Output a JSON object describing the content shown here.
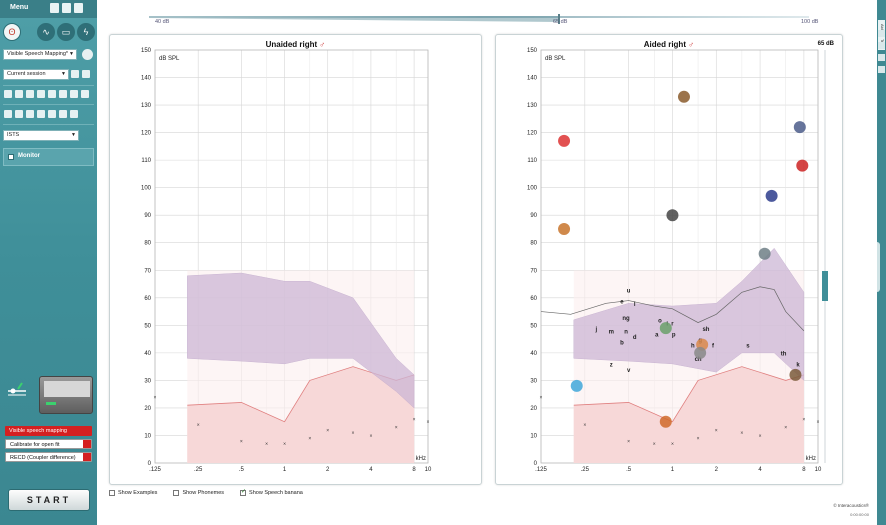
{
  "sidebar": {
    "menu_label": "Menu",
    "program_combo": "Visible Speech Mapping*",
    "session_combo": "Current session",
    "signal_combo": "ISTS",
    "monitor_label": "Monitor",
    "modes": [
      {
        "label": "Visible speech mapping",
        "active": true
      },
      {
        "label": "Calibrate for open fit",
        "active": false
      },
      {
        "label": "RECD (Coupler difference)",
        "active": false
      }
    ],
    "start_label": "START"
  },
  "level_bar": {
    "min_label": "40 dB",
    "mid_label": "65 dB",
    "max_label": "100 dB"
  },
  "right_strip": {
    "tab1": "Aid",
    "tab2": "Test"
  },
  "unaided": {
    "title": "Unaided right",
    "y_axis_label": "dB SPL",
    "x_unit": "kHz",
    "y_ticks": [
      "150",
      "140",
      "130",
      "120",
      "110",
      "100",
      "90",
      "80",
      "70",
      "60",
      "50",
      "40",
      "30",
      "20",
      "10",
      "0"
    ],
    "x_ticks": [
      ".125",
      ".25",
      ".5",
      "1",
      "2",
      "4",
      "8",
      "10"
    ]
  },
  "aided": {
    "title": "Aided right",
    "level_readout": "65 dB",
    "y_axis_label": "dB SPL",
    "x_unit": "kHz",
    "y_ticks": [
      "150",
      "140",
      "130",
      "120",
      "110",
      "100",
      "90",
      "80",
      "70",
      "60",
      "50",
      "40",
      "30",
      "20",
      "10",
      "0"
    ],
    "x_ticks": [
      ".125",
      ".25",
      ".5",
      "1",
      "2",
      "4",
      "8",
      "10"
    ],
    "phonemes": [
      "u",
      "e",
      "l",
      "ng",
      "j",
      "m",
      "n",
      "d",
      "b",
      "o",
      "i",
      "a",
      "r",
      "p",
      "h",
      "g",
      "ch",
      "sh",
      "f",
      "s",
      "th",
      "k",
      "z",
      "v"
    ]
  },
  "chart_data": [
    {
      "type": "area",
      "title": "Unaided right",
      "ylabel": "dB SPL",
      "xlabel": "kHz",
      "ylim": [
        0,
        150
      ],
      "x_scale": "log",
      "xlim": [
        0.125,
        10
      ],
      "series": [
        {
          "name": "",
          "x": [
            0.21,
            0.5,
            1.0,
            1.5,
            3.0,
            6.0,
            8.0
          ],
          "upper": [
            68,
            69,
            66,
            66,
            60,
            38,
            32
          ],
          "lower": [
            38,
            37,
            36,
            38,
            38,
            26,
            20
          ]
        },
        {
          "name": "",
          "x": [
            0.21,
            0.5,
            1.0,
            1.5,
            3.0,
            6.0,
            8.0
          ],
          "y": [
            21,
            22,
            15,
            30,
            35,
            30,
            32
          ]
        },
        {
          "name": "",
          "x": [
            0.125,
            0.25,
            0.5,
            0.75,
            1.0,
            1.5,
            2.0,
            3.0,
            4.0,
            6.0,
            8.0,
            10.0
          ],
          "y": [
            24,
            14,
            8,
            7,
            7,
            9,
            12,
            11,
            10,
            13,
            16,
            15
          ]
        }
      ]
    },
    {
      "type": "area",
      "title": "Aided right",
      "ylabel": "dB SPL",
      "xlabel": "kHz",
      "ylim": [
        0,
        150
      ],
      "x_scale": "log",
      "xlim": [
        0.125,
        10
      ],
      "series": [
        {
          "name": "",
          "x": [
            0.21,
            0.5,
            1.0,
            2.0,
            3.0,
            5.0,
            8.0
          ],
          "upper": [
            52,
            58,
            57,
            58,
            66,
            78,
            62
          ],
          "lower": [
            38,
            37,
            36,
            33,
            40,
            40,
            30
          ]
        },
        {
          "name": "",
          "x": [
            0.125,
            0.2,
            0.35,
            0.5,
            0.75,
            1.0,
            1.5,
            2.0,
            3.0,
            4.0,
            5.0,
            6.0,
            8.0
          ],
          "y": [
            55,
            54,
            58,
            59,
            57,
            56,
            51,
            54,
            62,
            64,
            63,
            55,
            48
          ]
        },
        {
          "name": "",
          "x": [
            0.21,
            0.5,
            1.0,
            1.5,
            3.0,
            6.0,
            8.0
          ],
          "y": [
            21,
            22,
            15,
            30,
            35,
            30,
            32
          ]
        },
        {
          "name": "",
          "x": [
            0.125,
            0.25,
            0.5,
            0.75,
            1.0,
            1.5,
            2.0,
            3.0,
            4.0,
            6.0,
            8.0,
            10.0
          ],
          "y": [
            24,
            14,
            8,
            7,
            7,
            9,
            12,
            11,
            10,
            13,
            16,
            15
          ]
        }
      ]
    }
  ],
  "bottom_bar": {
    "show_examples": "Show Examples",
    "show_phonemes": "Show Phonemes",
    "show_banana": "Show Speech banana",
    "examples_checked": false,
    "phonemes_checked": false,
    "banana_checked": true,
    "copyright": "© Interacoustics®",
    "version": "0:00:00:00"
  },
  "colors": {
    "banana": "#cdb7d6",
    "threshold_fill": "#f6d6d6",
    "threshold_line": "#e08080",
    "accent": "#3f8f99",
    "active_mode": "#d42020"
  }
}
